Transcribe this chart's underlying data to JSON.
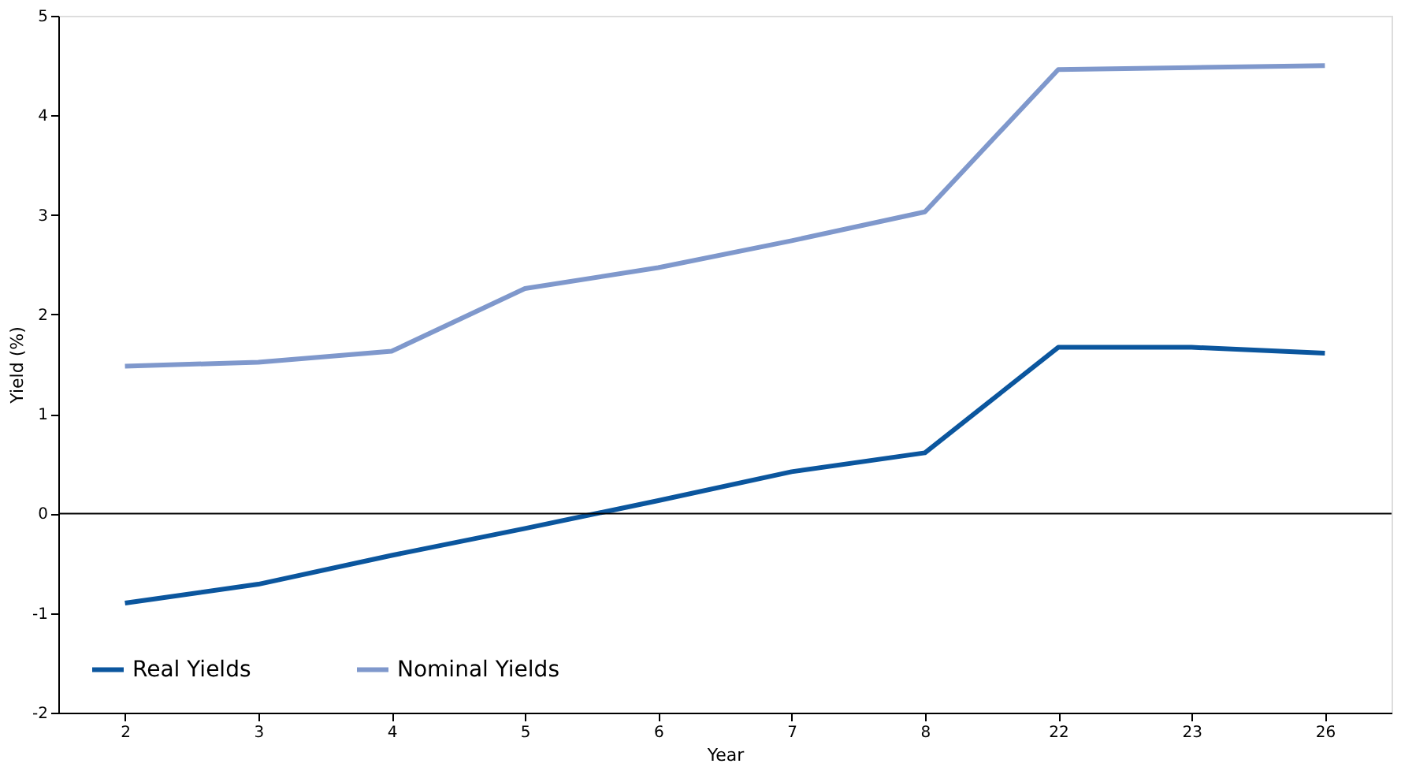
{
  "chart_data": {
    "type": "line",
    "xlabel": "Year",
    "ylabel": "Yield (%)",
    "categories": [
      "2",
      "3",
      "4",
      "5",
      "6",
      "7",
      "8",
      "22",
      "23",
      "26"
    ],
    "series": [
      {
        "name": "Real Yields",
        "color": "#0b569e",
        "values": [
          -0.9,
          -0.71,
          -0.42,
          -0.15,
          0.13,
          0.42,
          0.61,
          1.67,
          1.67,
          1.61
        ]
      },
      {
        "name": "Nominal Yields",
        "color": "#7f98cc",
        "values": [
          1.48,
          1.52,
          1.63,
          2.26,
          2.47,
          2.74,
          3.03,
          4.46,
          4.48,
          4.5
        ]
      }
    ],
    "ylim": [
      -2,
      5
    ],
    "yticks": [
      -2,
      -1,
      0,
      1,
      2,
      3,
      4,
      5
    ],
    "ref_lines": [
      {
        "axis": "y",
        "value": 0,
        "color": "#000000"
      }
    ],
    "grid": false,
    "legend": "bottom left",
    "marker": "none",
    "line_style": "solid"
  }
}
